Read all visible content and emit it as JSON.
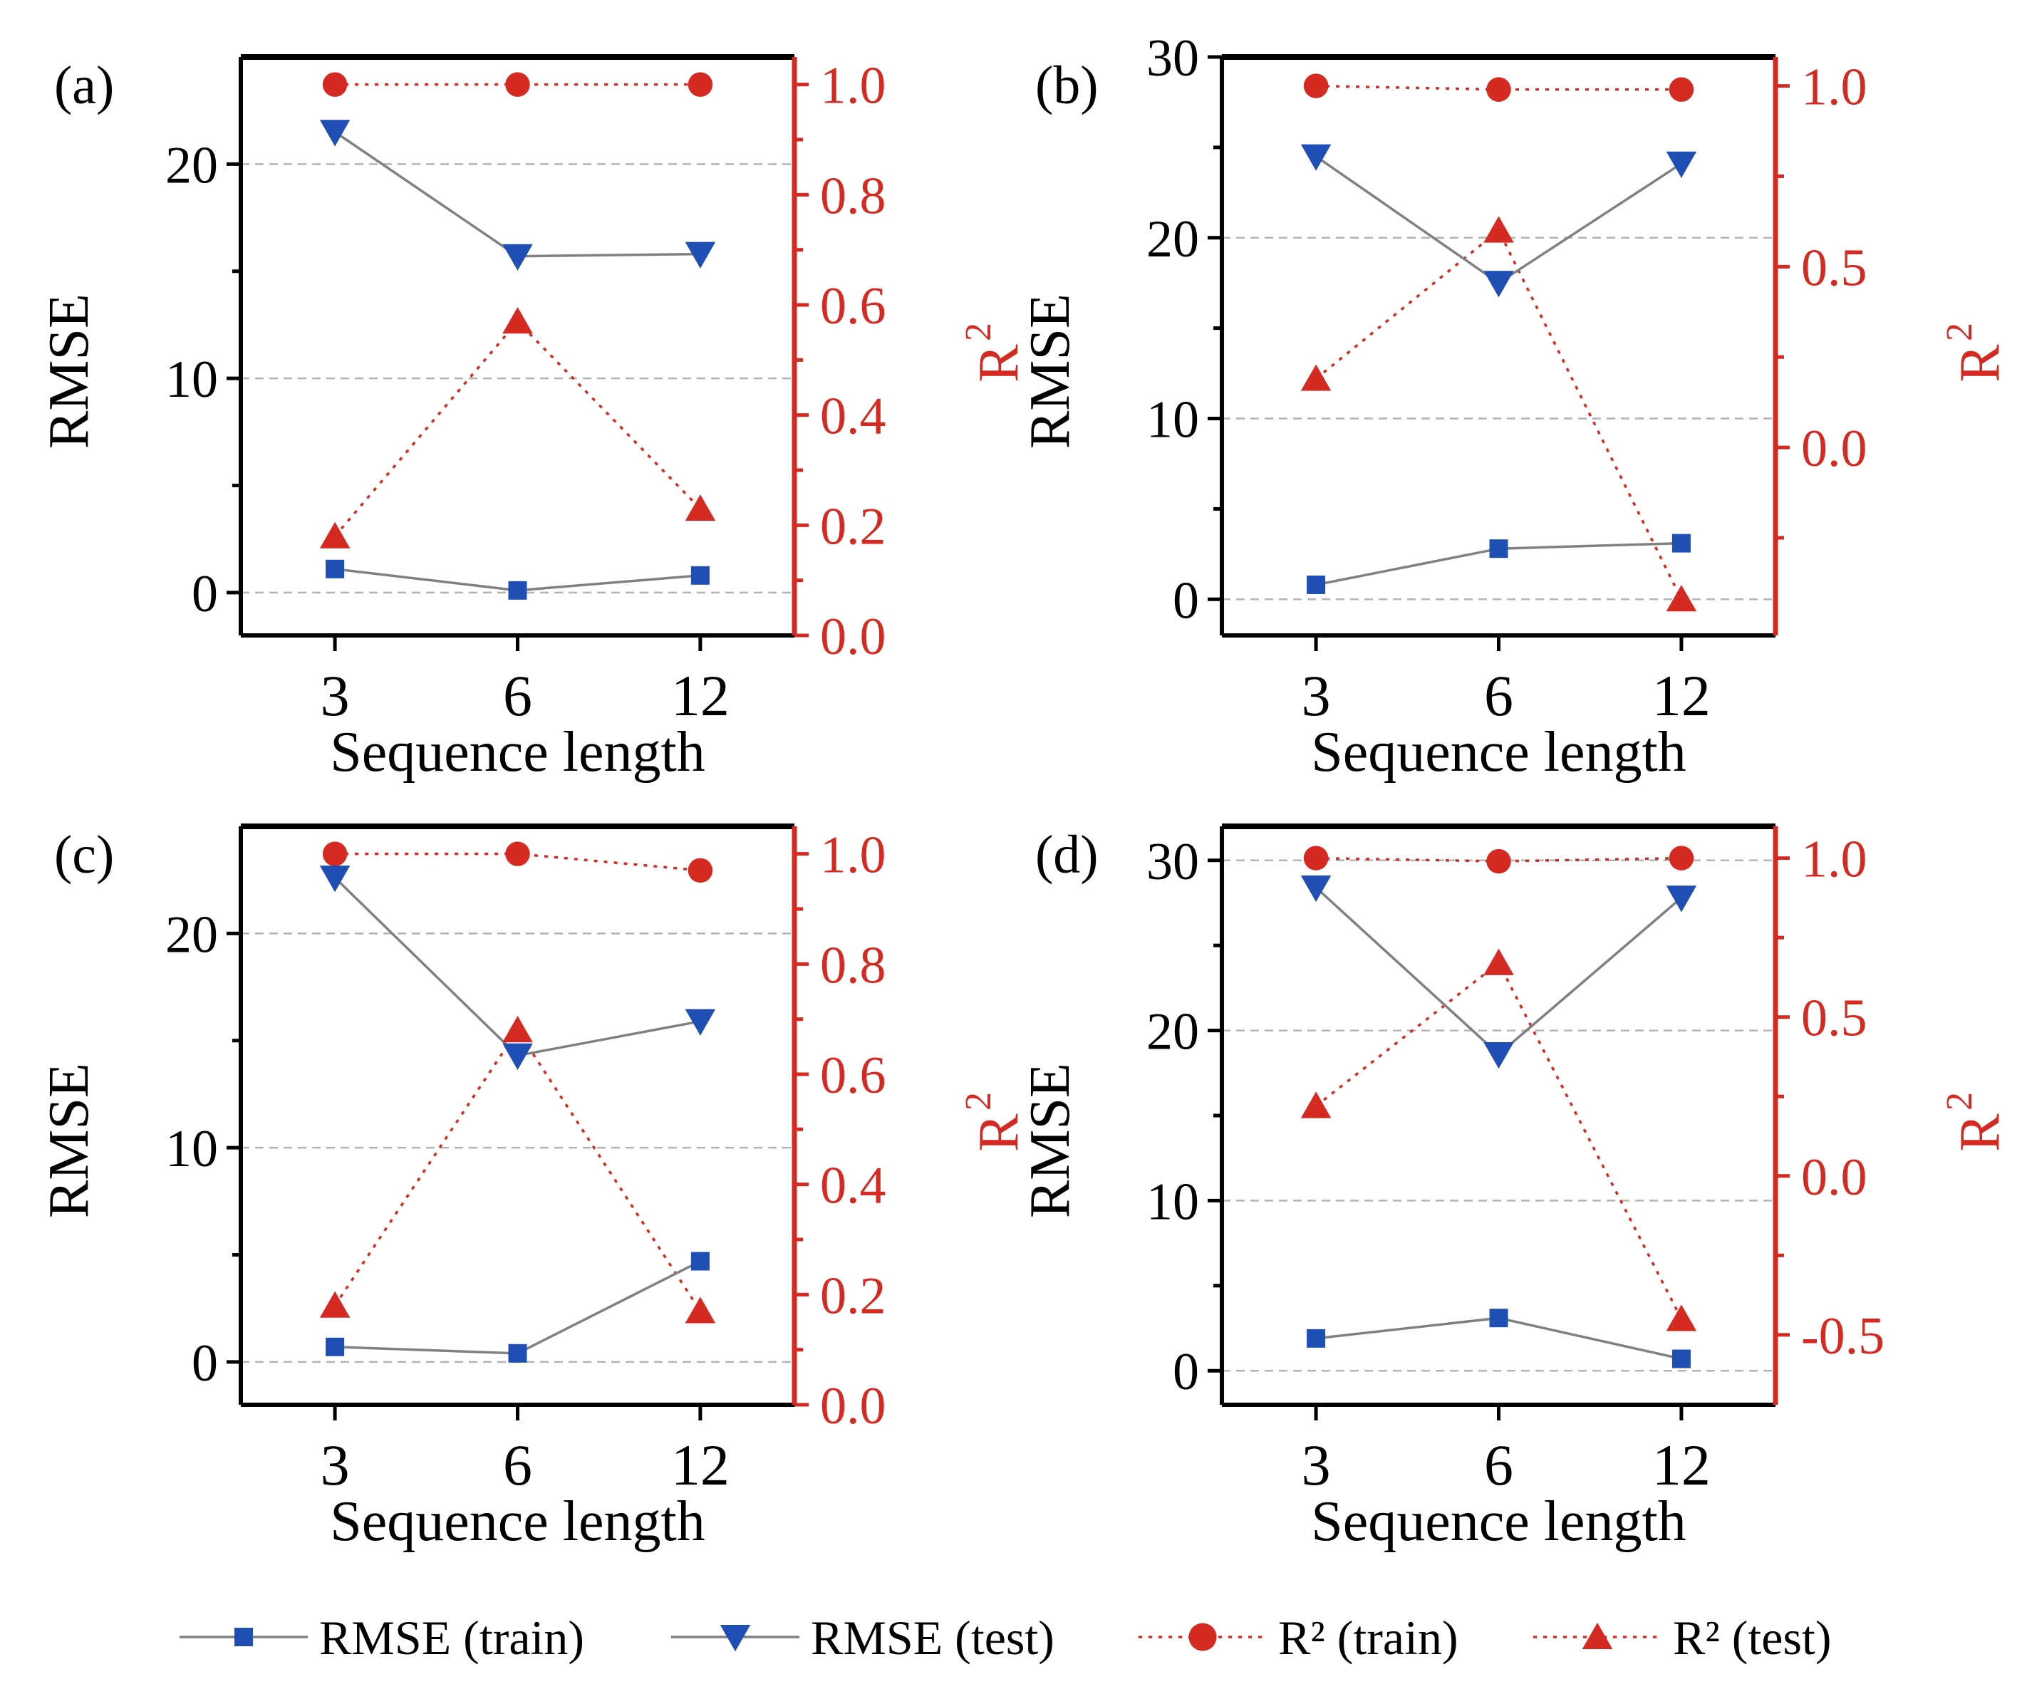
{
  "chart_data": [
    {
      "type": "line",
      "panel_label": "(a)",
      "categories": [
        "3",
        "6",
        "12"
      ],
      "xlabel": "Sequence length",
      "ylabel": "RMSE",
      "ylabel_right": "R",
      "ylabel_right_sup": "2",
      "ylim": [
        -2,
        25
      ],
      "ylim_right": [
        0.0,
        1.05
      ],
      "yticks": [
        "0",
        "10",
        "20"
      ],
      "yticks_right": [
        "0.0",
        "0.2",
        "0.4",
        "0.6",
        "0.8",
        "1.0"
      ],
      "rmse_train": [
        1.1,
        0.1,
        0.8
      ],
      "rmse_test": [
        21.5,
        15.7,
        15.8
      ],
      "r2_train": [
        1.0,
        1.0,
        1.0
      ],
      "r2_test": [
        0.18,
        0.57,
        0.23
      ]
    },
    {
      "type": "line",
      "panel_label": "(b)",
      "categories": [
        "3",
        "6",
        "12"
      ],
      "xlabel": "Sequence length",
      "ylabel": "RMSE",
      "ylabel_right": "R",
      "ylabel_right_sup": "2",
      "ylim": [
        -2,
        30
      ],
      "ylim_right": [
        -0.52,
        1.08
      ],
      "yticks": [
        "0",
        "10",
        "20",
        "30"
      ],
      "yticks_right": [
        "0.0",
        "0.5",
        "1.0"
      ],
      "rmse_train": [
        0.8,
        2.8,
        3.1
      ],
      "rmse_test": [
        24.5,
        17.5,
        24.1
      ],
      "r2_train": [
        1.0,
        0.99,
        0.99
      ],
      "r2_test": [
        0.19,
        0.6,
        -0.42
      ]
    },
    {
      "type": "line",
      "panel_label": "(c)",
      "categories": [
        "3",
        "6",
        "12"
      ],
      "xlabel": "Sequence length",
      "ylabel": "RMSE",
      "ylabel_right": "R",
      "ylabel_right_sup": "2",
      "ylim": [
        -2,
        25
      ],
      "ylim_right": [
        0.0,
        1.05
      ],
      "yticks": [
        "0",
        "10",
        "20"
      ],
      "yticks_right": [
        "0.0",
        "0.2",
        "0.4",
        "0.6",
        "0.8",
        "1.0"
      ],
      "rmse_train": [
        0.7,
        0.4,
        4.7
      ],
      "rmse_test": [
        22.6,
        14.3,
        15.9
      ],
      "r2_train": [
        1.0,
        1.0,
        0.97
      ],
      "r2_test": [
        0.18,
        0.68,
        0.17
      ]
    },
    {
      "type": "line",
      "panel_label": "(d)",
      "categories": [
        "3",
        "6",
        "12"
      ],
      "xlabel": "Sequence length",
      "ylabel": "RMSE",
      "ylabel_right": "R",
      "ylabel_right_sup": "2",
      "ylim": [
        -2,
        32
      ],
      "ylim_right": [
        -0.72,
        1.1
      ],
      "yticks": [
        "0",
        "10",
        "20",
        "30"
      ],
      "yticks_right": [
        "-0.5",
        "0.0",
        "0.5",
        "1.0"
      ],
      "rmse_train": [
        1.9,
        3.1,
        0.7
      ],
      "rmse_test": [
        28.4,
        18.6,
        27.8
      ],
      "r2_train": [
        1.0,
        0.99,
        1.0
      ],
      "r2_test": [
        0.22,
        0.67,
        -0.45
      ]
    }
  ],
  "legend": {
    "placement": "bottom",
    "items": [
      {
        "label": "RMSE (train)",
        "marker": "square",
        "color": "#1f4fb4",
        "line": "solid",
        "line_color": "#808080"
      },
      {
        "label": "RMSE (test)",
        "marker": "triangle-down",
        "color": "#1f4fb4",
        "line": "solid",
        "line_color": "#808080"
      },
      {
        "label": "R² (train)",
        "marker": "circle",
        "color": "#d42a22",
        "line": "dotted",
        "line_color": "#d42a22"
      },
      {
        "label": "R² (test)",
        "marker": "triangle-up",
        "color": "#d42a22",
        "line": "dotted",
        "line_color": "#d42a22"
      }
    ]
  },
  "colors": {
    "rmse_marker": "#1f4fb4",
    "rmse_line": "#808080",
    "r2": "#d42a22",
    "axis": "#000000",
    "grid": "#b4b4b4"
  }
}
